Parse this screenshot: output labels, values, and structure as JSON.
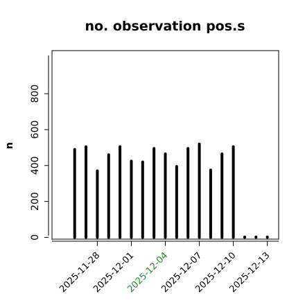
{
  "chart_data": {
    "type": "bar",
    "title": "no. observation pos.s",
    "xlabel": "",
    "ylabel": "n",
    "ylim": [
      -10,
      1040
    ],
    "y_ticks": [
      0,
      200,
      400,
      600,
      800
    ],
    "y_tick_labels": [
      "0",
      "200",
      "400",
      "600",
      "800"
    ],
    "x_range": [
      "2025-11-24",
      "2025-12-14"
    ],
    "x_ticks": [
      {
        "date": "2025-11-28",
        "label": "2025-11-28",
        "color": "#000000"
      },
      {
        "date": "2025-12-01",
        "label": "2025-12-01",
        "color": "#000000"
      },
      {
        "date": "2025-12-04",
        "label": "2025-12-04",
        "color": "#228b22"
      },
      {
        "date": "2025-12-07",
        "label": "2025-12-07",
        "color": "#000000"
      },
      {
        "date": "2025-12-10",
        "label": "2025-12-10",
        "color": "#000000"
      },
      {
        "date": "2025-12-13",
        "label": "2025-12-13",
        "color": "#000000"
      }
    ],
    "x": [
      "2025-11-26",
      "2025-11-27",
      "2025-11-28",
      "2025-11-29",
      "2025-11-30",
      "2025-12-01",
      "2025-12-02",
      "2025-12-03",
      "2025-12-04",
      "2025-12-05",
      "2025-12-06",
      "2025-12-07",
      "2025-12-08",
      "2025-12-09",
      "2025-12-10",
      "2025-12-11",
      "2025-12-12",
      "2025-12-13"
    ],
    "values": [
      490,
      505,
      370,
      460,
      505,
      425,
      420,
      495,
      465,
      395,
      495,
      520,
      375,
      465,
      505,
      0,
      0,
      0
    ],
    "grid": false,
    "bar_color": "#000000"
  }
}
